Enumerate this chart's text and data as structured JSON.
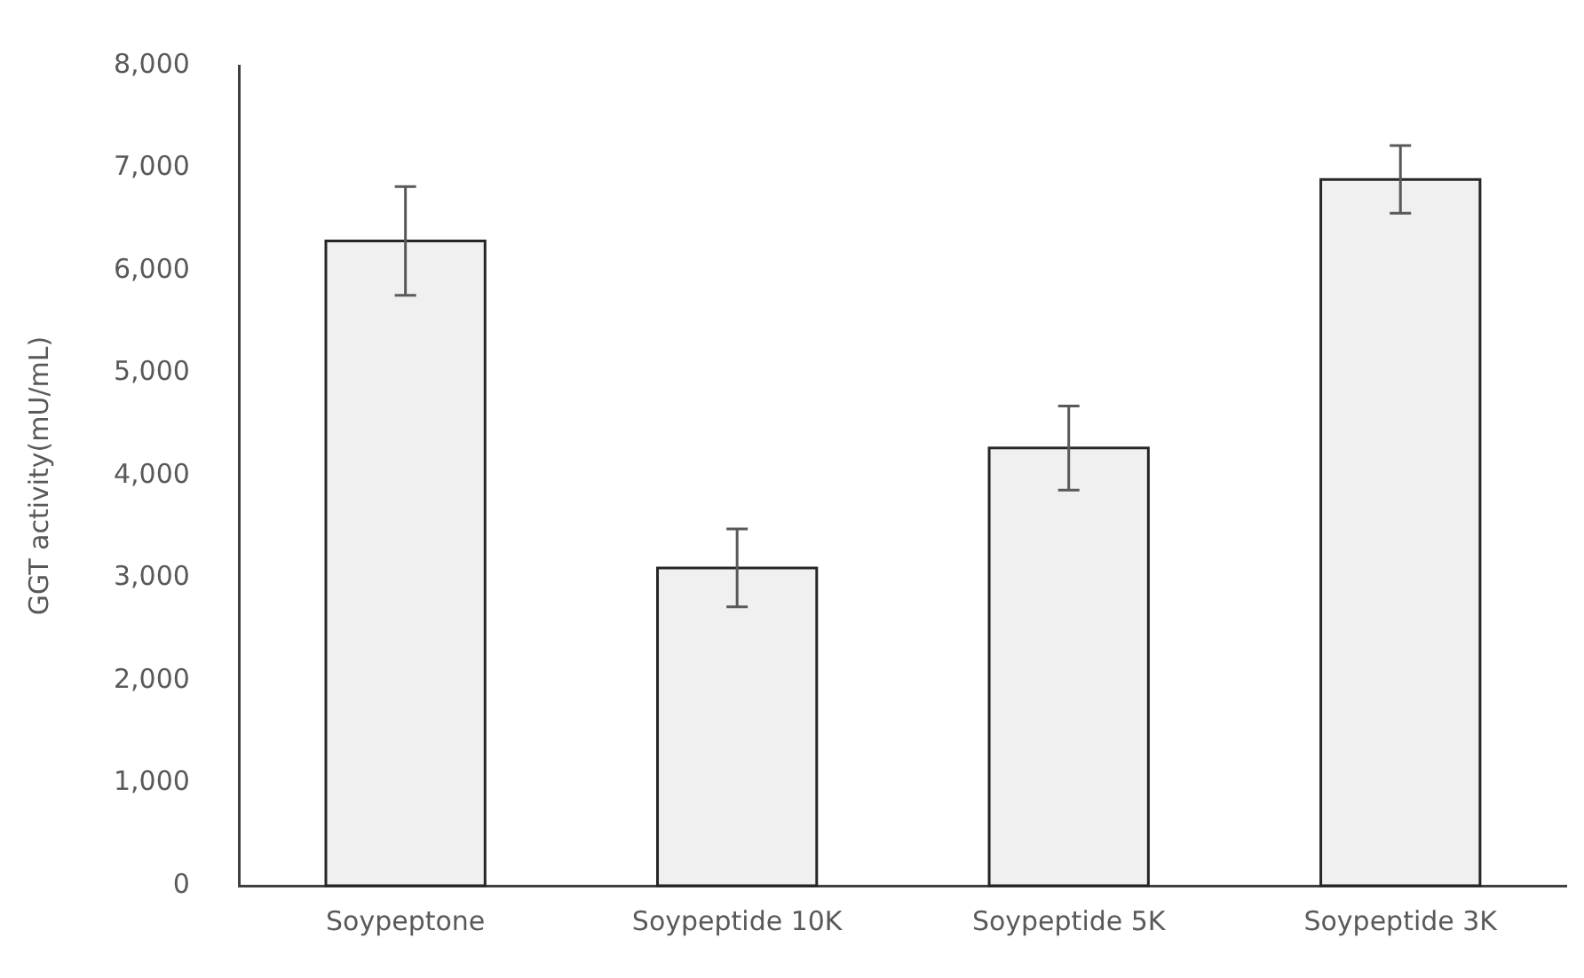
{
  "chart_data": {
    "type": "bar",
    "ylabel": "GGT activity(mU/mL)",
    "categories": [
      "Soypeptone",
      "Soypeptide 10K",
      "Soypeptide 5K",
      "Soypeptide 3K"
    ],
    "values": [
      6290,
      3100,
      4270,
      6890
    ],
    "errors": [
      530,
      380,
      410,
      330
    ],
    "color": "#f0f0f0",
    "ylim": [
      0,
      8000
    ],
    "yticks": [
      {
        "value": 0,
        "label": "0"
      },
      {
        "value": 1000,
        "label": "1,000"
      },
      {
        "value": 2000,
        "label": "2,000"
      },
      {
        "value": 3000,
        "label": "3,000"
      },
      {
        "value": 4000,
        "label": "4,000"
      },
      {
        "value": 5000,
        "label": "5,000"
      },
      {
        "value": 6000,
        "label": "6,000"
      },
      {
        "value": 7000,
        "label": "7,000"
      },
      {
        "value": 8000,
        "label": "8,000"
      }
    ],
    "grid": false,
    "legend": false
  }
}
